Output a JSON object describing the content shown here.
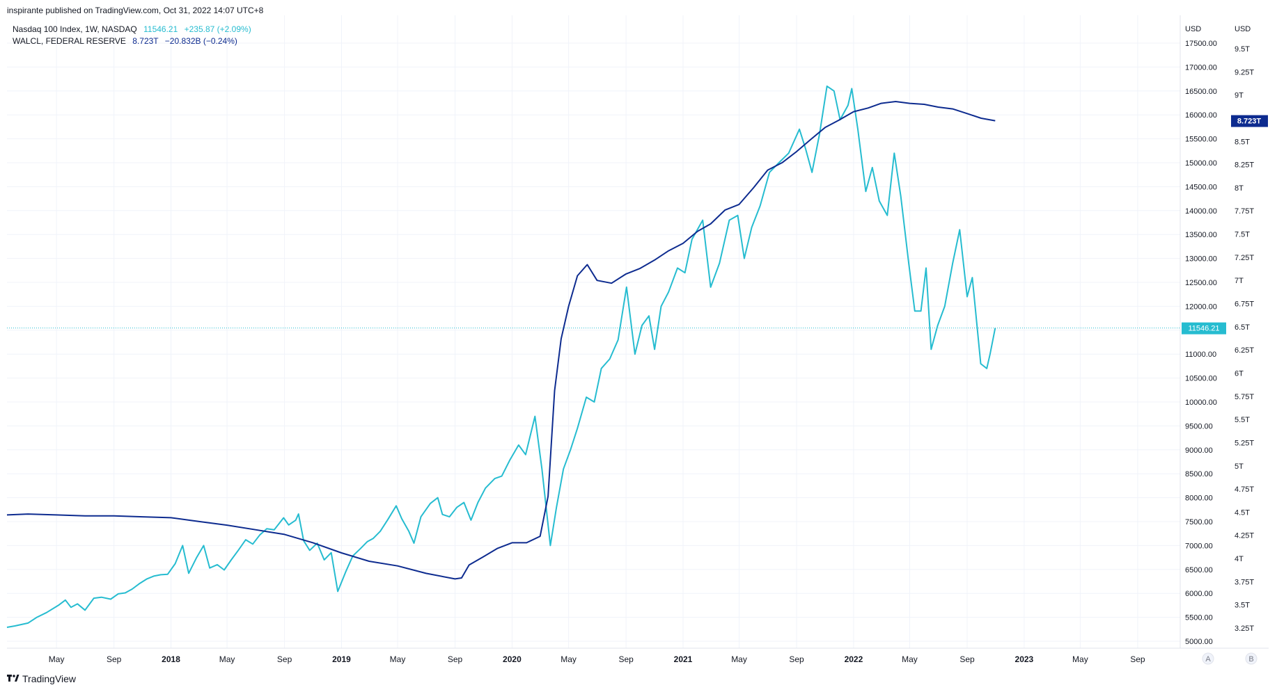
{
  "header": {
    "published": "inspirante published on TradingView.com, Oct 31, 2022 14:07 UTC+8"
  },
  "legend": [
    {
      "name": "Nasdaq 100 Index, 1W, NASDAQ",
      "value": "11546.21",
      "change": "+235.87 (+2.09%)"
    },
    {
      "name": "WALCL, FEDERAL RESERVE",
      "value": "8.723T",
      "change": "−20.832B (−0.24%)"
    }
  ],
  "footer": {
    "brand": "TradingView",
    "logo": "tradingview-logo-icon"
  },
  "scale_buttons": [
    "A",
    "B"
  ],
  "chart_data": {
    "type": "line",
    "x_ticks": [
      "May",
      "Sep",
      "2018",
      "May",
      "Sep",
      "2019",
      "May",
      "Sep",
      "2020",
      "May",
      "Sep",
      "2021",
      "May",
      "Sep",
      "2022",
      "May",
      "Sep",
      "2023",
      "May",
      "Sep"
    ],
    "xlim": [
      "2017-01-15",
      "2023-12-01"
    ],
    "y_right_1": {
      "unit": "USD",
      "range": [
        5000,
        17500
      ],
      "ticks": [
        "17500.00",
        "17000.00",
        "16500.00",
        "16000.00",
        "15500.00",
        "15000.00",
        "14500.00",
        "14000.00",
        "13500.00",
        "13000.00",
        "12500.00",
        "12000.00",
        "11500.00",
        "11000.00",
        "10500.00",
        "10000.00",
        "9500.00",
        "9000.00",
        "8500.00",
        "8000.00",
        "7500.00",
        "7000.00",
        "6500.00",
        "6000.00",
        "5500.00",
        "5000.00"
      ]
    },
    "y_right_2": {
      "unit": "USD",
      "range": [
        3,
        9.75
      ],
      "ticks": [
        "9.5T",
        "9.25T",
        "9T",
        "8.75T",
        "8.5T",
        "8.25T",
        "8T",
        "7.75T",
        "7.5T",
        "7.25T",
        "7T",
        "6.75T",
        "6.5T",
        "6.25T",
        "6T",
        "5.75T",
        "5.5T",
        "5.25T",
        "5T",
        "4.75T",
        "4.5T",
        "4.25T",
        "4T",
        "3.75T",
        "3.5T",
        "3.25T"
      ]
    },
    "last_labels": {
      "nasdaq": "11546.21",
      "walcl": "8.723T"
    },
    "colors": {
      "nasdaq": "#26bcd0",
      "walcl": "#0d2b8f",
      "grid": "#f0f3fa",
      "axis_text": "#131722"
    },
    "series": [
      {
        "name": "Nasdaq 100 Index, 1W, NASDAQ",
        "axis": "y_right_1",
        "points": [
          [
            "2017-01-15",
            5290
          ],
          [
            "2017-02-01",
            5320
          ],
          [
            "2017-03-01",
            5380
          ],
          [
            "2017-03-20",
            5500
          ],
          [
            "2017-04-10",
            5600
          ],
          [
            "2017-05-05",
            5750
          ],
          [
            "2017-05-20",
            5860
          ],
          [
            "2017-06-01",
            5710
          ],
          [
            "2017-06-15",
            5780
          ],
          [
            "2017-07-01",
            5650
          ],
          [
            "2017-07-20",
            5900
          ],
          [
            "2017-08-05",
            5920
          ],
          [
            "2017-08-25",
            5880
          ],
          [
            "2017-09-10",
            5990
          ],
          [
            "2017-09-25",
            6010
          ],
          [
            "2017-10-10",
            6090
          ],
          [
            "2017-10-25",
            6200
          ],
          [
            "2017-11-10",
            6300
          ],
          [
            "2017-11-25",
            6360
          ],
          [
            "2017-12-10",
            6390
          ],
          [
            "2017-12-25",
            6400
          ],
          [
            "2018-01-10",
            6620
          ],
          [
            "2018-01-26",
            7000
          ],
          [
            "2018-02-08",
            6420
          ],
          [
            "2018-02-25",
            6750
          ],
          [
            "2018-03-12",
            7000
          ],
          [
            "2018-03-25",
            6530
          ],
          [
            "2018-04-10",
            6600
          ],
          [
            "2018-04-25",
            6490
          ],
          [
            "2018-05-10",
            6700
          ],
          [
            "2018-05-25",
            6900
          ],
          [
            "2018-06-10",
            7120
          ],
          [
            "2018-06-25",
            7030
          ],
          [
            "2018-07-10",
            7220
          ],
          [
            "2018-07-25",
            7350
          ],
          [
            "2018-08-10",
            7330
          ],
          [
            "2018-08-30",
            7580
          ],
          [
            "2018-09-10",
            7430
          ],
          [
            "2018-09-25",
            7530
          ],
          [
            "2018-10-01",
            7660
          ],
          [
            "2018-10-12",
            7100
          ],
          [
            "2018-10-25",
            6900
          ],
          [
            "2018-11-10",
            7050
          ],
          [
            "2018-11-25",
            6700
          ],
          [
            "2018-12-10",
            6850
          ],
          [
            "2018-12-24",
            6040
          ],
          [
            "2019-01-10",
            6450
          ],
          [
            "2019-01-25",
            6780
          ],
          [
            "2019-02-10",
            6930
          ],
          [
            "2019-02-25",
            7080
          ],
          [
            "2019-03-10",
            7150
          ],
          [
            "2019-03-25",
            7300
          ],
          [
            "2019-04-10",
            7540
          ],
          [
            "2019-04-28",
            7830
          ],
          [
            "2019-05-10",
            7560
          ],
          [
            "2019-05-25",
            7300
          ],
          [
            "2019-06-05",
            7050
          ],
          [
            "2019-06-20",
            7600
          ],
          [
            "2019-07-10",
            7880
          ],
          [
            "2019-07-26",
            8000
          ],
          [
            "2019-08-05",
            7650
          ],
          [
            "2019-08-20",
            7600
          ],
          [
            "2019-09-05",
            7800
          ],
          [
            "2019-09-20",
            7900
          ],
          [
            "2019-10-05",
            7530
          ],
          [
            "2019-10-20",
            7900
          ],
          [
            "2019-11-05",
            8200
          ],
          [
            "2019-11-25",
            8400
          ],
          [
            "2019-12-10",
            8450
          ],
          [
            "2019-12-27",
            8780
          ],
          [
            "2020-01-15",
            9100
          ],
          [
            "2020-01-30",
            8900
          ],
          [
            "2020-02-19",
            9700
          ],
          [
            "2020-03-05",
            8600
          ],
          [
            "2020-03-23",
            7000
          ],
          [
            "2020-04-05",
            7800
          ],
          [
            "2020-04-20",
            8600
          ],
          [
            "2020-05-05",
            9000
          ],
          [
            "2020-05-20",
            9450
          ],
          [
            "2020-06-08",
            10100
          ],
          [
            "2020-06-25",
            10000
          ],
          [
            "2020-07-10",
            10700
          ],
          [
            "2020-07-28",
            10900
          ],
          [
            "2020-08-15",
            11300
          ],
          [
            "2020-09-02",
            12400
          ],
          [
            "2020-09-20",
            11000
          ],
          [
            "2020-10-05",
            11600
          ],
          [
            "2020-10-20",
            11800
          ],
          [
            "2020-11-01",
            11100
          ],
          [
            "2020-11-15",
            12000
          ],
          [
            "2020-12-01",
            12300
          ],
          [
            "2020-12-20",
            12800
          ],
          [
            "2021-01-05",
            12700
          ],
          [
            "2021-01-20",
            13400
          ],
          [
            "2021-02-12",
            13800
          ],
          [
            "2021-03-01",
            12400
          ],
          [
            "2021-03-20",
            12900
          ],
          [
            "2021-04-10",
            13800
          ],
          [
            "2021-04-28",
            13900
          ],
          [
            "2021-05-12",
            13000
          ],
          [
            "2021-05-28",
            13650
          ],
          [
            "2021-06-15",
            14100
          ],
          [
            "2021-07-05",
            14800
          ],
          [
            "2021-07-25",
            15000
          ],
          [
            "2021-08-15",
            15200
          ],
          [
            "2021-09-07",
            15700
          ],
          [
            "2021-09-20",
            15300
          ],
          [
            "2021-10-04",
            14800
          ],
          [
            "2021-10-20",
            15600
          ],
          [
            "2021-11-05",
            16600
          ],
          [
            "2021-11-20",
            16500
          ],
          [
            "2021-12-03",
            15900
          ],
          [
            "2021-12-20",
            16200
          ],
          [
            "2021-12-28",
            16550
          ],
          [
            "2022-01-10",
            15700
          ],
          [
            "2022-01-27",
            14400
          ],
          [
            "2022-02-10",
            14900
          ],
          [
            "2022-02-25",
            14200
          ],
          [
            "2022-03-14",
            13900
          ],
          [
            "2022-03-29",
            15200
          ],
          [
            "2022-04-12",
            14300
          ],
          [
            "2022-04-29",
            12900
          ],
          [
            "2022-05-12",
            11900
          ],
          [
            "2022-05-25",
            11900
          ],
          [
            "2022-06-05",
            12800
          ],
          [
            "2022-06-16",
            11100
          ],
          [
            "2022-06-30",
            11600
          ],
          [
            "2022-07-15",
            12000
          ],
          [
            "2022-08-01",
            12900
          ],
          [
            "2022-08-16",
            13600
          ],
          [
            "2022-09-01",
            12200
          ],
          [
            "2022-09-12",
            12600
          ],
          [
            "2022-09-30",
            10800
          ],
          [
            "2022-10-13",
            10700
          ],
          [
            "2022-10-20",
            11000
          ],
          [
            "2022-10-31",
            11546.21
          ]
        ]
      },
      {
        "name": "WALCL, FEDERAL RESERVE",
        "axis": "y_right_2",
        "points": [
          [
            "2017-01-15",
            4.47
          ],
          [
            "2017-03-01",
            4.48
          ],
          [
            "2017-05-01",
            4.47
          ],
          [
            "2017-07-01",
            4.46
          ],
          [
            "2017-09-01",
            4.46
          ],
          [
            "2017-11-01",
            4.45
          ],
          [
            "2018-01-01",
            4.44
          ],
          [
            "2018-03-01",
            4.4
          ],
          [
            "2018-05-01",
            4.36
          ],
          [
            "2018-07-01",
            4.31
          ],
          [
            "2018-09-01",
            4.26
          ],
          [
            "2018-11-01",
            4.17
          ],
          [
            "2019-01-01",
            4.06
          ],
          [
            "2019-03-01",
            3.97
          ],
          [
            "2019-05-01",
            3.92
          ],
          [
            "2019-07-01",
            3.84
          ],
          [
            "2019-09-01",
            3.78
          ],
          [
            "2019-09-15",
            3.79
          ],
          [
            "2019-10-01",
            3.93
          ],
          [
            "2019-11-01",
            4.02
          ],
          [
            "2019-12-01",
            4.11
          ],
          [
            "2020-01-01",
            4.17
          ],
          [
            "2020-02-01",
            4.17
          ],
          [
            "2020-03-01",
            4.24
          ],
          [
            "2020-03-18",
            4.67
          ],
          [
            "2020-04-01",
            5.81
          ],
          [
            "2020-04-15",
            6.37
          ],
          [
            "2020-05-01",
            6.72
          ],
          [
            "2020-05-20",
            7.05
          ],
          [
            "2020-06-10",
            7.17
          ],
          [
            "2020-07-01",
            7.0
          ],
          [
            "2020-08-01",
            6.97
          ],
          [
            "2020-09-01",
            7.07
          ],
          [
            "2020-10-01",
            7.13
          ],
          [
            "2020-11-01",
            7.22
          ],
          [
            "2020-12-01",
            7.32
          ],
          [
            "2021-01-01",
            7.4
          ],
          [
            "2021-02-01",
            7.53
          ],
          [
            "2021-03-01",
            7.61
          ],
          [
            "2021-04-01",
            7.76
          ],
          [
            "2021-05-01",
            7.82
          ],
          [
            "2021-06-01",
            8.0
          ],
          [
            "2021-07-01",
            8.19
          ],
          [
            "2021-08-01",
            8.27
          ],
          [
            "2021-09-01",
            8.39
          ],
          [
            "2021-10-01",
            8.52
          ],
          [
            "2021-11-01",
            8.65
          ],
          [
            "2021-12-01",
            8.73
          ],
          [
            "2022-01-01",
            8.82
          ],
          [
            "2022-02-01",
            8.86
          ],
          [
            "2022-03-01",
            8.91
          ],
          [
            "2022-04-01",
            8.93
          ],
          [
            "2022-05-01",
            8.91
          ],
          [
            "2022-06-01",
            8.9
          ],
          [
            "2022-07-01",
            8.87
          ],
          [
            "2022-08-01",
            8.85
          ],
          [
            "2022-09-01",
            8.8
          ],
          [
            "2022-10-01",
            8.75
          ],
          [
            "2022-10-31",
            8.723
          ]
        ]
      }
    ]
  }
}
